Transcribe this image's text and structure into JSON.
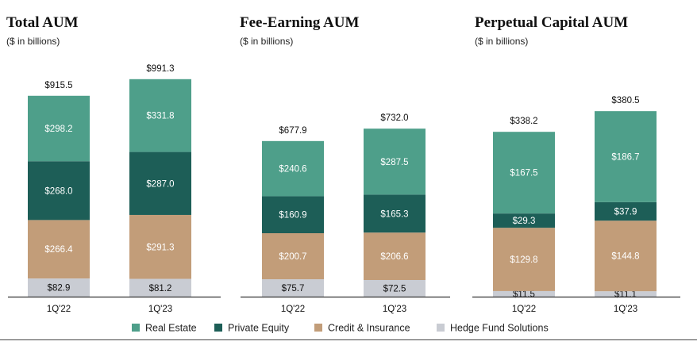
{
  "chart_data": [
    {
      "type": "bar",
      "title": "Total AUM",
      "subtitle": "($ in billions)",
      "categories": [
        "1Q'22",
        "1Q'23"
      ],
      "totals": [
        "$915.5",
        "$991.3"
      ],
      "series": [
        {
          "name": "Hedge Fund Solutions",
          "values": [
            82.9,
            81.2
          ],
          "labels": [
            "$82.9",
            "$81.2"
          ]
        },
        {
          "name": "Credit & Insurance",
          "values": [
            266.4,
            291.3
          ],
          "labels": [
            "$266.4",
            "$291.3"
          ]
        },
        {
          "name": "Private Equity",
          "values": [
            268.0,
            287.0
          ],
          "labels": [
            "$268.0",
            "$287.0"
          ]
        },
        {
          "name": "Real Estate",
          "values": [
            298.2,
            331.8
          ],
          "labels": [
            "$298.2",
            "$331.8"
          ]
        }
      ]
    },
    {
      "type": "bar",
      "title": "Fee-Earning AUM",
      "subtitle": "($ in billions)",
      "categories": [
        "1Q'22",
        "1Q'23"
      ],
      "totals": [
        "$677.9",
        "$732.0"
      ],
      "series": [
        {
          "name": "Hedge Fund Solutions",
          "values": [
            75.7,
            72.5
          ],
          "labels": [
            "$75.7",
            "$72.5"
          ]
        },
        {
          "name": "Credit & Insurance",
          "values": [
            200.7,
            206.6
          ],
          "labels": [
            "$200.7",
            "$206.6"
          ]
        },
        {
          "name": "Private Equity",
          "values": [
            160.9,
            165.3
          ],
          "labels": [
            "$160.9",
            "$165.3"
          ]
        },
        {
          "name": "Real Estate",
          "values": [
            240.6,
            287.5
          ],
          "labels": [
            "$240.6",
            "$287.5"
          ]
        }
      ]
    },
    {
      "type": "bar",
      "title": "Perpetual Capital AUM",
      "subtitle": "($ in billions)",
      "categories": [
        "1Q'22",
        "1Q'23"
      ],
      "totals": [
        "$338.2",
        "$380.5"
      ],
      "series": [
        {
          "name": "Hedge Fund Solutions",
          "values": [
            11.5,
            11.1
          ],
          "labels": [
            "$11.5",
            "$11.1"
          ]
        },
        {
          "name": "Credit & Insurance",
          "values": [
            129.8,
            144.8
          ],
          "labels": [
            "$129.8",
            "$144.8"
          ]
        },
        {
          "name": "Private Equity",
          "values": [
            29.3,
            37.9
          ],
          "labels": [
            "$29.3",
            "$37.9"
          ]
        },
        {
          "name": "Real Estate",
          "values": [
            167.5,
            186.7
          ],
          "labels": [
            "$167.5",
            "$186.7"
          ]
        }
      ]
    }
  ],
  "legend": [
    {
      "label": "Real Estate",
      "color": "#4e9f8a"
    },
    {
      "label": "Private Equity",
      "color": "#1d5e57"
    },
    {
      "label": "Credit & Insurance",
      "color": "#c29d79"
    },
    {
      "label": "Hedge Fund Solutions",
      "color": "#c9ccd3"
    }
  ],
  "colors": {
    "Real Estate": "#4e9f8a",
    "Private Equity": "#1d5e57",
    "Credit & Insurance": "#c29d79",
    "Hedge Fund Solutions": "#c9ccd3"
  },
  "label_colors": {
    "Real Estate": "#ffffff",
    "Private Equity": "#ffffff",
    "Credit & Insurance": "#ffffff",
    "Hedge Fund Solutions": "#111111"
  }
}
